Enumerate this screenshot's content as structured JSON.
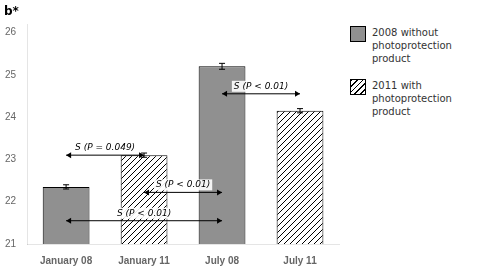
{
  "chart_data": {
    "type": "bar",
    "ylabel": "b*",
    "categories": [
      "January 08",
      "January 11",
      "July 08",
      "July 11"
    ],
    "series": [
      {
        "name": "2008 without photoprotection\nproduct",
        "color": "#909090",
        "values": [
          22.35,
          null,
          25.2,
          null
        ],
        "errors": [
          0.05,
          null,
          0.07,
          null
        ]
      },
      {
        "name": "2011 with photoprotection\nproduct",
        "color": "#ffffff",
        "values": [
          null,
          23.1,
          null,
          24.15
        ],
        "errors": [
          null,
          0.05,
          null,
          0.05
        ]
      }
    ],
    "ylim": [
      21,
      26.2
    ],
    "yticks": [
      21,
      22,
      23,
      24,
      25,
      26
    ],
    "grid": false,
    "legend": "right",
    "annotations": [
      {
        "text": "S (P = 0.049)",
        "from": "January 08",
        "to": "January 11",
        "y": 23.1
      },
      {
        "text": "S (P < 0.01)",
        "from": "January 11",
        "to": "July 08",
        "y": 22.22
      },
      {
        "text": "S (P < 0.01)",
        "from": "January 08",
        "to": "July 08",
        "y": 21.55
      },
      {
        "text": "S (P < 0.01)",
        "from": "July 08",
        "to": "July 11",
        "y": 24.55
      }
    ]
  }
}
